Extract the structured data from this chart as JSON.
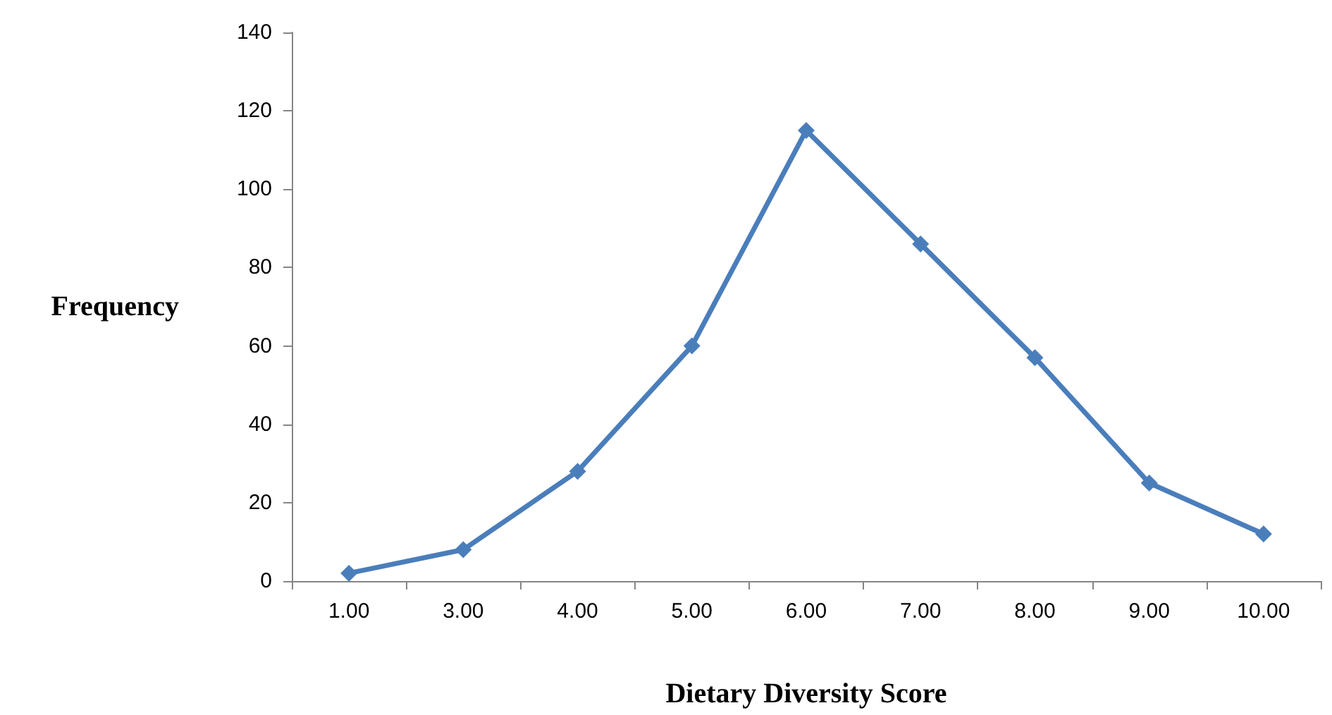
{
  "chart_data": {
    "type": "line",
    "xlabel": "Dietary Diversity Score",
    "ylabel": "Frequency",
    "categories": [
      "1.00",
      "3.00",
      "4.00",
      "5.00",
      "6.00",
      "7.00",
      "8.00",
      "9.00",
      "10.00"
    ],
    "series": [
      {
        "color": "#4a7ebb",
        "values": [
          2,
          8,
          28,
          60,
          115,
          86,
          57,
          25,
          12
        ]
      }
    ],
    "ylim": [
      0,
      140
    ],
    "yticks": [
      0,
      20,
      40,
      60,
      80,
      100,
      120,
      140
    ],
    "grid": false,
    "marker": "diamond",
    "line_style": "solid"
  }
}
